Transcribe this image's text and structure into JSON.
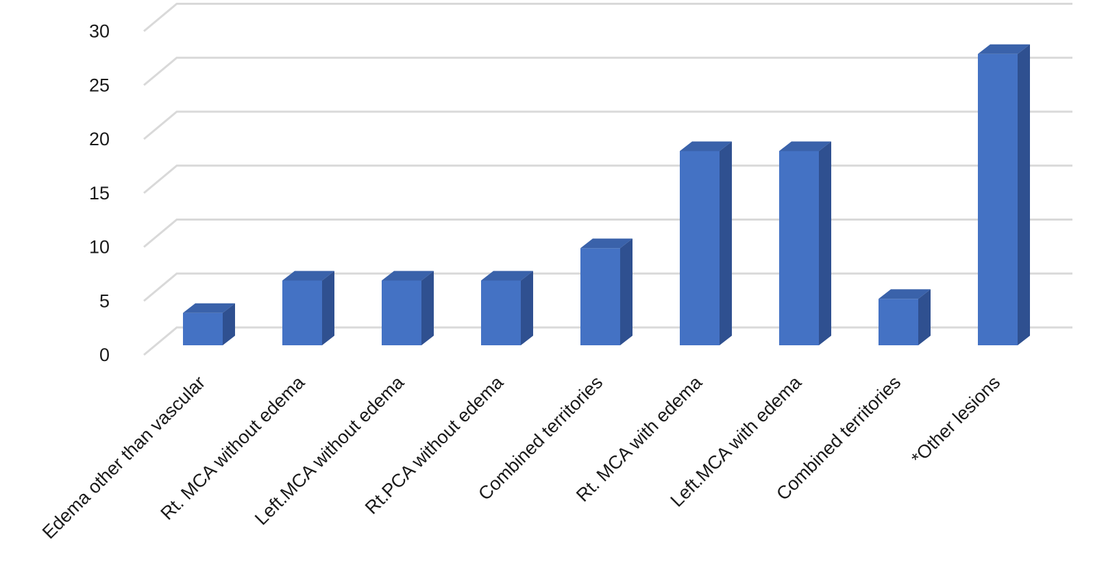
{
  "chart_data": {
    "type": "bar",
    "style": "3d-column",
    "categories": [
      "Edema other than vascular",
      "Rt. MCA without edema",
      "Left.MCA without edema",
      "Rt.PCA without edema",
      "Combined territories",
      "Rt. MCA with edema",
      "Left.MCA with edema",
      "Combined territories",
      "*Other lesions"
    ],
    "values": [
      3,
      6,
      6,
      6,
      9,
      18,
      18,
      4.3,
      27
    ],
    "ylim": [
      0,
      30
    ],
    "yticks": [
      "0",
      "5",
      "10",
      "15",
      "20",
      "25",
      "30"
    ],
    "grid": true,
    "legend": "none",
    "colors": {
      "front": "#4472C4",
      "side": "#2F5090",
      "top": "#3A62AA",
      "grid": "#D9D9D9"
    }
  }
}
